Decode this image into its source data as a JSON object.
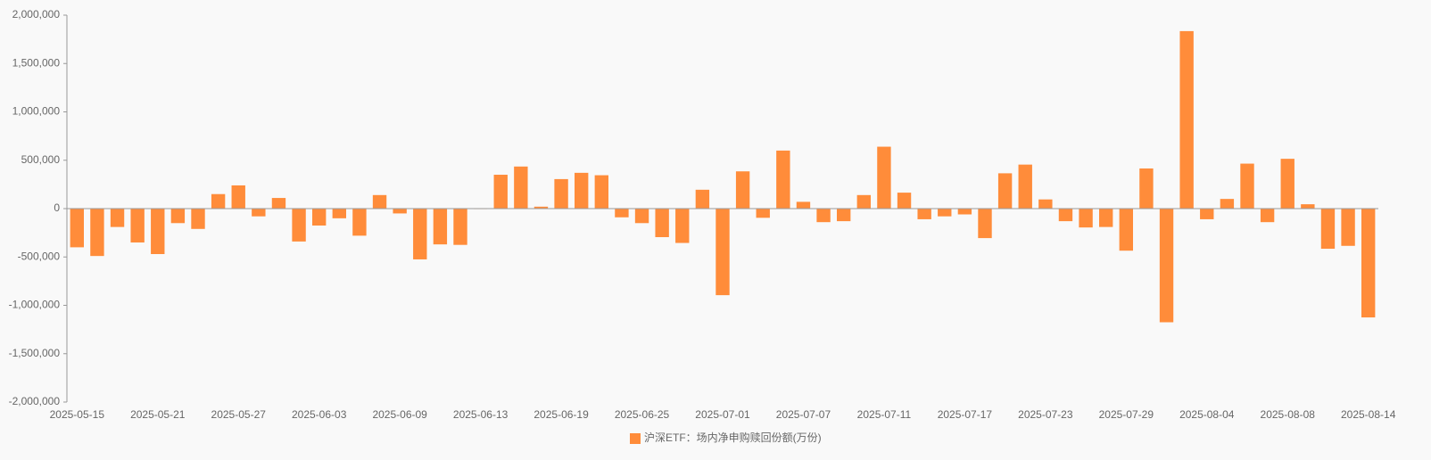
{
  "chart_data": {
    "type": "bar",
    "categories": [
      "2025-05-15",
      null,
      null,
      null,
      "2025-05-21",
      null,
      null,
      null,
      "2025-05-27",
      null,
      null,
      null,
      "2025-06-03",
      null,
      null,
      null,
      "2025-06-09",
      null,
      null,
      null,
      "2025-06-13",
      null,
      null,
      null,
      "2025-06-19",
      null,
      null,
      null,
      "2025-06-25",
      null,
      null,
      null,
      "2025-07-01",
      null,
      null,
      null,
      "2025-07-07",
      null,
      null,
      null,
      "2025-07-11",
      null,
      null,
      null,
      "2025-07-17",
      null,
      null,
      null,
      "2025-07-23",
      null,
      null,
      null,
      "2025-07-29",
      null,
      null,
      null,
      "2025-08-04",
      null,
      null,
      null,
      "2025-08-08",
      null,
      null,
      null,
      "2025-08-14"
    ],
    "series": [
      {
        "name": "沪深ETF：场内净申购赎回份额(万份)",
        "color": "#ff8c3a",
        "values": [
          -400000,
          -490000,
          -190000,
          -350000,
          -470000,
          -150000,
          -210000,
          150000,
          240000,
          -80000,
          110000,
          -340000,
          -175000,
          -100000,
          -280000,
          140000,
          -50000,
          -525000,
          -370000,
          -375000,
          -5000,
          350000,
          435000,
          20000,
          305000,
          370000,
          345000,
          -90000,
          -150000,
          -295000,
          -355000,
          195000,
          -895000,
          385000,
          -95000,
          600000,
          70000,
          -140000,
          -130000,
          140000,
          640000,
          165000,
          -110000,
          -80000,
          -60000,
          -305000,
          365000,
          455000,
          95000,
          -130000,
          -195000,
          -190000,
          -435000,
          415000,
          -1175000,
          1835000,
          -110000,
          100000,
          465000,
          -140000,
          515000,
          45000,
          -415000,
          -385000,
          -1125000
        ]
      }
    ],
    "ylim": [
      -2000000,
      2000000
    ],
    "yticks": [
      {
        "value": -2000000,
        "label": "-2,000,000"
      },
      {
        "value": -1500000,
        "label": "-1,500,000"
      },
      {
        "value": -1000000,
        "label": "-1,000,000"
      },
      {
        "value": -500000,
        "label": "-500,000"
      },
      0,
      {
        "value": 500000,
        "label": "500,000"
      },
      {
        "value": 1000000,
        "label": "1,000,000"
      },
      {
        "value": 1500000,
        "label": "1,500,000"
      },
      {
        "value": 2000000,
        "label": "2,000,000"
      }
    ],
    "grid": false,
    "legend": "bottom"
  }
}
